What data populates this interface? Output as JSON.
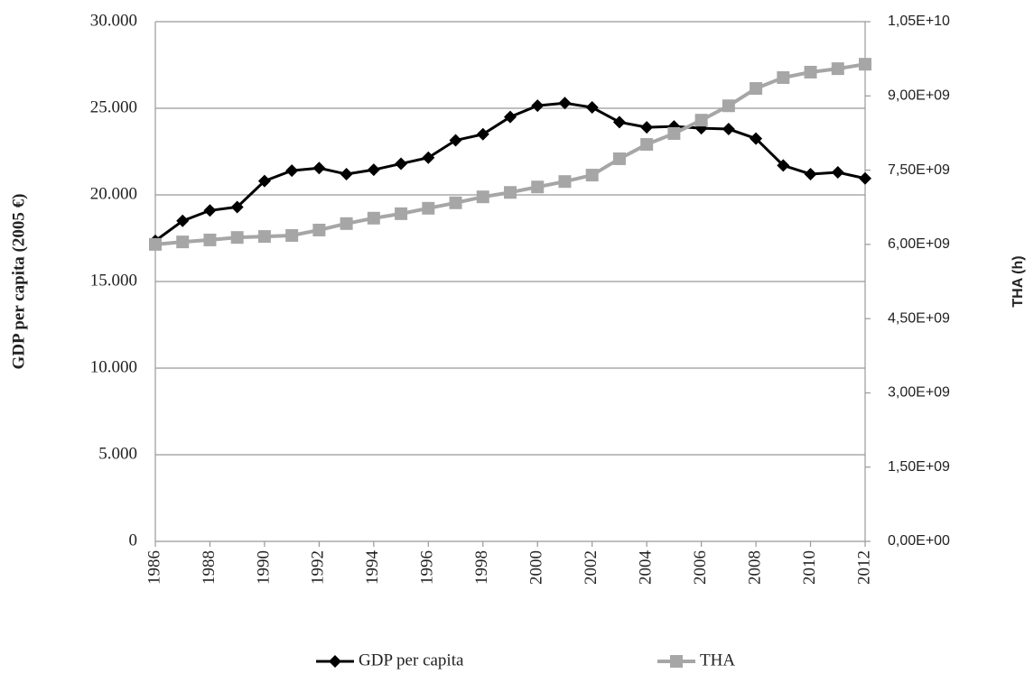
{
  "chart_data": {
    "type": "line",
    "y_label": "GDP per capita (2005  €)",
    "y2_label": "THA (h)",
    "x": [
      1986,
      1987,
      1988,
      1989,
      1990,
      1991,
      1992,
      1993,
      1994,
      1995,
      1996,
      1997,
      1998,
      1999,
      2000,
      2001,
      2002,
      2003,
      2004,
      2005,
      2006,
      2007,
      2008,
      2009,
      2010,
      2011,
      2012
    ],
    "xlim": [
      1986,
      2012
    ],
    "xticks": [
      1986,
      1988,
      1990,
      1992,
      1994,
      1996,
      1998,
      2000,
      2002,
      2004,
      2006,
      2008,
      2010,
      2012
    ],
    "ylim": [
      0,
      30000
    ],
    "yticks": [
      0,
      {
        "value": 5000,
        "label": "5.000"
      },
      {
        "value": 10000,
        "label": "10.000"
      },
      {
        "value": 15000,
        "label": "15.000"
      },
      {
        "value": 20000,
        "label": "20.000"
      },
      {
        "value": 25000,
        "label": "25.000"
      },
      {
        "value": 30000,
        "label": "30.000"
      }
    ],
    "y2lim": [
      0,
      10500000000
    ],
    "y2ticks": [
      {
        "value": 0,
        "label": "0,00E+00"
      },
      {
        "value": 1500000000,
        "label": "1,50E+09"
      },
      {
        "value": 3000000000,
        "label": "3,00E+09"
      },
      {
        "value": 4500000000,
        "label": "4,50E+09"
      },
      {
        "value": 6000000000,
        "label": "6,00E+09"
      },
      {
        "value": 7500000000,
        "label": "7,50E+09"
      },
      {
        "value": 9000000000,
        "label": "9,00E+09"
      },
      {
        "value": 10500000000,
        "label": "1,05E+10"
      }
    ],
    "grid": true,
    "legend": "bottom",
    "series": [
      {
        "name": "GDP per capita",
        "color": "#000000",
        "marker": "diamond",
        "values": [
          17350,
          18500,
          19100,
          19300,
          20800,
          21400,
          21550,
          21200,
          21450,
          21800,
          22150,
          23150,
          23500,
          24500,
          25150,
          25300,
          25050,
          24200,
          23900,
          23950,
          23850,
          23800,
          23250,
          21700,
          21200,
          21300,
          20950
        ]
      },
      {
        "name": "THA",
        "color": "#a6a6a6",
        "marker": "square",
        "axis": "y2",
        "values": [
          6000000000,
          6050000000,
          6090000000,
          6140000000,
          6160000000,
          6180000000,
          6290000000,
          6420000000,
          6530000000,
          6620000000,
          6730000000,
          6840000000,
          6960000000,
          7050000000,
          7160000000,
          7270000000,
          7400000000,
          7730000000,
          8020000000,
          8240000000,
          8510000000,
          8800000000,
          9150000000,
          9370000000,
          9480000000,
          9550000000,
          9640000000
        ]
      }
    ]
  }
}
